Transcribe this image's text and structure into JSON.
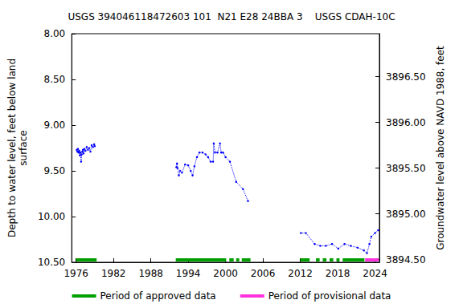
{
  "chart_data": {
    "type": "line",
    "title": "USGS 394046118472603 101  N21 E28 24BBA 3    USGS CDAH-10C",
    "y_label": "Depth to water level, feet below land\nsurface",
    "y2_label": "Groundwater level above NAVD 1988, feet",
    "x": [
      1976.1,
      1976.2,
      1976.3,
      1976.4,
      1976.5,
      1976.6,
      1976.7,
      1976.8,
      1976.9,
      1977.0,
      1977.1,
      1977.2,
      1977.3,
      1977.5,
      1977.7,
      1977.9,
      1978.1,
      1978.3,
      1978.5,
      1978.7,
      1978.9,
      1979.0,
      1985.0,
      1992.1,
      1992.2,
      1992.3,
      1992.5,
      1992.7,
      1993.0,
      1993.5,
      1994.0,
      1994.4,
      1994.7,
      1995.0,
      1995.4,
      1995.8,
      1996.3,
      1996.8,
      1997.2,
      1997.6,
      1998.0,
      1998.1,
      1998.3,
      1998.7,
      1999.1,
      1999.3,
      1999.6,
      2000.0,
      2000.7,
      2001.7,
      2002.8,
      2003.6,
      2008.0,
      2012.1,
      2012.9,
      2014.3,
      2015.2,
      2016.1,
      2017.1,
      2018.1,
      2019.1,
      2020.1,
      2021.2,
      2022.2,
      2022.7,
      2023.1,
      2023.4,
      2024.0,
      2024.5
    ],
    "series": [
      {
        "name": "Depth to water level",
        "color": "#0000ff",
        "marker": "point",
        "line_style": "dotted",
        "values": [
          9.27,
          9.29,
          9.26,
          9.3,
          9.28,
          9.33,
          9.3,
          9.4,
          9.32,
          9.29,
          9.27,
          9.31,
          9.26,
          9.28,
          9.24,
          9.27,
          9.25,
          9.29,
          9.22,
          9.24,
          9.21,
          9.23,
          null,
          9.46,
          9.42,
          9.47,
          9.55,
          9.5,
          9.52,
          9.43,
          9.44,
          9.5,
          9.55,
          9.45,
          9.35,
          9.3,
          9.3,
          9.32,
          9.35,
          9.4,
          9.4,
          9.2,
          9.3,
          9.3,
          9.2,
          9.3,
          9.3,
          9.35,
          9.4,
          9.62,
          9.7,
          9.83,
          null,
          10.18,
          10.18,
          10.3,
          10.32,
          10.32,
          10.3,
          10.35,
          10.3,
          10.32,
          10.34,
          10.37,
          10.4,
          10.3,
          10.22,
          10.18,
          10.15
        ]
      }
    ],
    "periods": [
      {
        "name": "Period of approved data",
        "color": "#00a000",
        "ranges": [
          [
            1976.0,
            1979.3
          ],
          [
            1992.0,
            2000.1
          ],
          [
            2000.6,
            2001.3
          ],
          [
            2001.7,
            2002.2
          ],
          [
            2002.6,
            2004.0
          ],
          [
            2012.0,
            2013.5
          ],
          [
            2014.5,
            2015.1
          ],
          [
            2015.6,
            2016.2
          ],
          [
            2016.7,
            2017.3
          ],
          [
            2017.8,
            2018.3
          ],
          [
            2018.8,
            2022.3
          ]
        ]
      },
      {
        "name": "Period of provisional data",
        "color": "#ff33dd",
        "ranges": [
          [
            2022.4,
            2024.6
          ]
        ]
      }
    ],
    "xlim": [
      1975.3,
      2024.7
    ],
    "xticks": [
      1976,
      1982,
      1988,
      1994,
      2000,
      2006,
      2012,
      2018,
      2024
    ],
    "ylim": [
      8.0,
      10.5
    ],
    "yticks": [
      {
        "value": 8.0,
        "label": "8.00"
      },
      {
        "value": 8.5,
        "label": "8.50"
      },
      {
        "value": 9.0,
        "label": "9.00"
      },
      {
        "value": 9.5,
        "label": "9.50"
      },
      {
        "value": 10.0,
        "label": "10.00"
      },
      {
        "value": 10.5,
        "label": "10.50"
      }
    ],
    "y2lim": [
      3894.47,
      3896.97
    ],
    "y2ticks": [
      {
        "value": 3894.5,
        "label": "3894.50"
      },
      {
        "value": 3895.0,
        "label": "3895.00"
      },
      {
        "value": 3895.5,
        "label": "3895.50"
      },
      {
        "value": 3896.0,
        "label": "3896.00"
      },
      {
        "value": 3896.5,
        "label": "3896.50"
      }
    ],
    "grid": false,
    "legend": "bottom"
  }
}
